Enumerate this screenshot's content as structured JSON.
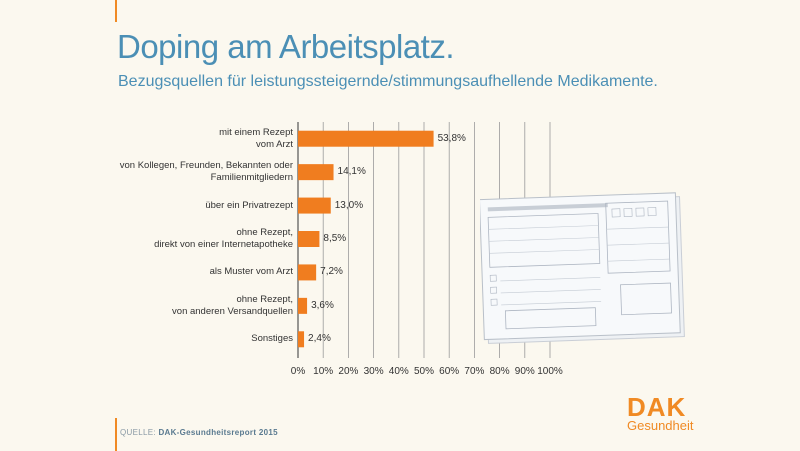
{
  "title": "Doping am Arbeitsplatz.",
  "subtitle": "Bezugsquellen für leistungssteigernde/stimmungsaufhellende Medikamente.",
  "source_label": "QUELLE:",
  "source_text": "DAK-Gesundheitsreport 2015",
  "logo": {
    "main": "DAK",
    "sub": "Gesundheit"
  },
  "colors": {
    "bar": "#f07d1f",
    "accent": "#f08a24",
    "title": "#4b8fb5"
  },
  "chart_data": {
    "type": "bar",
    "orientation": "horizontal",
    "title": "Doping am Arbeitsplatz.",
    "subtitle": "Bezugsquellen für leistungssteigernde/stimmungsaufhellende Medikamente.",
    "categories": [
      [
        "mit einem Rezept",
        "vom Arzt"
      ],
      [
        "von Kollegen, Freunden, Bekannten oder",
        "Familienmitgliedern"
      ],
      [
        "über ein Privatrezept"
      ],
      [
        "ohne Rezept,",
        "direkt von einer Internetapotheke"
      ],
      [
        "als Muster vom Arzt"
      ],
      [
        "ohne Rezept,",
        "von anderen Versandquellen"
      ],
      [
        "Sonstiges"
      ]
    ],
    "values": [
      53.8,
      14.1,
      13.0,
      8.5,
      7.2,
      3.6,
      2.4
    ],
    "value_labels": [
      "53,8%",
      "14,1%",
      "13,0%",
      "8,5%",
      "7,2%",
      "3,6%",
      "2,4%"
    ],
    "xlim": [
      0,
      100
    ],
    "ticks": [
      "0%",
      "10%",
      "20%",
      "30%",
      "40%",
      "50%",
      "60%",
      "70%",
      "80%",
      "90%",
      "100%"
    ],
    "grid": true,
    "xlabel": "",
    "ylabel": ""
  }
}
